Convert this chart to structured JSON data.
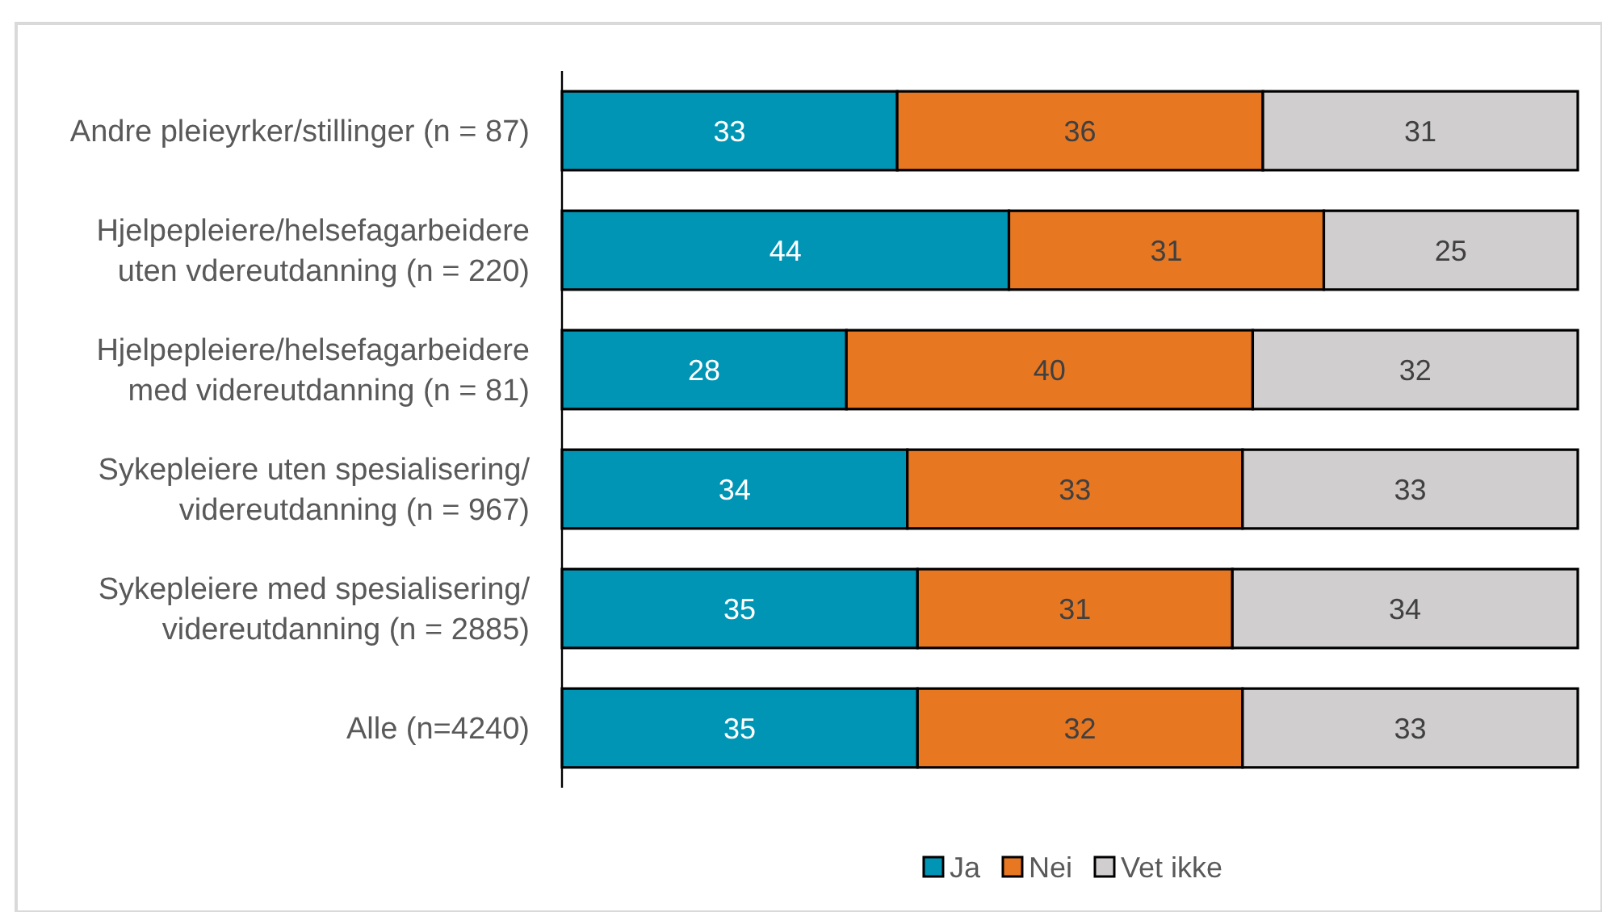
{
  "chart_data": {
    "type": "bar",
    "orientation": "horizontal",
    "stacked": true,
    "categories": [
      "Andre pleieyrker/stillinger (n = 87)",
      "Hjelpepleiere/helsefagarbeidere uten vdereutdanning (n = 220)",
      "Hjelpepleiere/helsefagarbeidere med videreutdanning (n = 81)",
      "Sykepleiere uten spesialisering/videreutdanning (n = 967)",
      "Sykepleiere med spesialisering/videreutdanning (n = 2885)",
      "Alle (n=4240)"
    ],
    "series": [
      {
        "name": "Ja",
        "color": "#0095b5",
        "values": [
          33,
          44,
          28,
          34,
          35,
          35
        ]
      },
      {
        "name": "Nei",
        "color": "#e87722",
        "values": [
          36,
          31,
          40,
          33,
          31,
          32
        ]
      },
      {
        "name": "Vet ikke",
        "color": "#d0cece",
        "values": [
          31,
          25,
          32,
          33,
          34,
          33
        ]
      }
    ],
    "data_labels": true,
    "legend": "bottom"
  }
}
